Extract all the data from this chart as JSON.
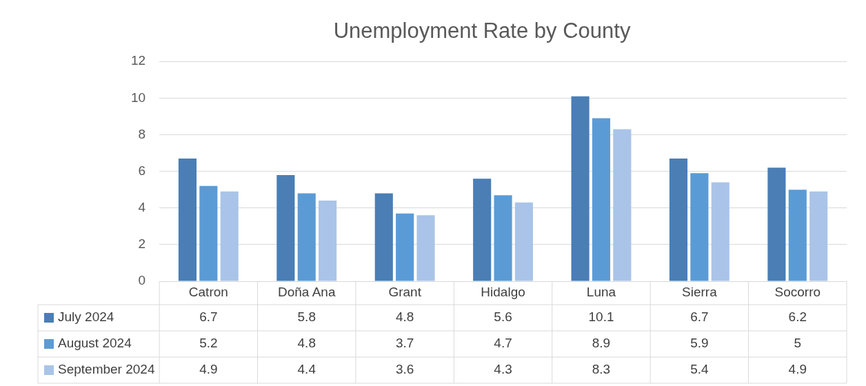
{
  "chart_data": {
    "type": "bar",
    "title": "Unemployment Rate by County",
    "categories": [
      "Catron",
      "Doña Ana",
      "Grant",
      "Hidalgo",
      "Luna",
      "Sierra",
      "Socorro"
    ],
    "series": [
      {
        "name": "July 2024",
        "color": "#4a7eb5",
        "values": [
          6.7,
          5.8,
          4.8,
          5.6,
          10.1,
          6.7,
          6.2
        ]
      },
      {
        "name": "August 2024",
        "color": "#5b9bd5",
        "values": [
          5.2,
          4.8,
          3.7,
          4.7,
          8.9,
          5.9,
          5
        ]
      },
      {
        "name": "September 2024",
        "color": "#a9c4e8",
        "values": [
          4.9,
          4.4,
          3.6,
          4.3,
          8.3,
          5.4,
          4.9
        ]
      }
    ],
    "ylim": [
      0,
      12
    ],
    "yticks": [
      0,
      2,
      4,
      6,
      8,
      10,
      12
    ],
    "grid": "y",
    "legend": "bottom",
    "data_labels": true
  }
}
